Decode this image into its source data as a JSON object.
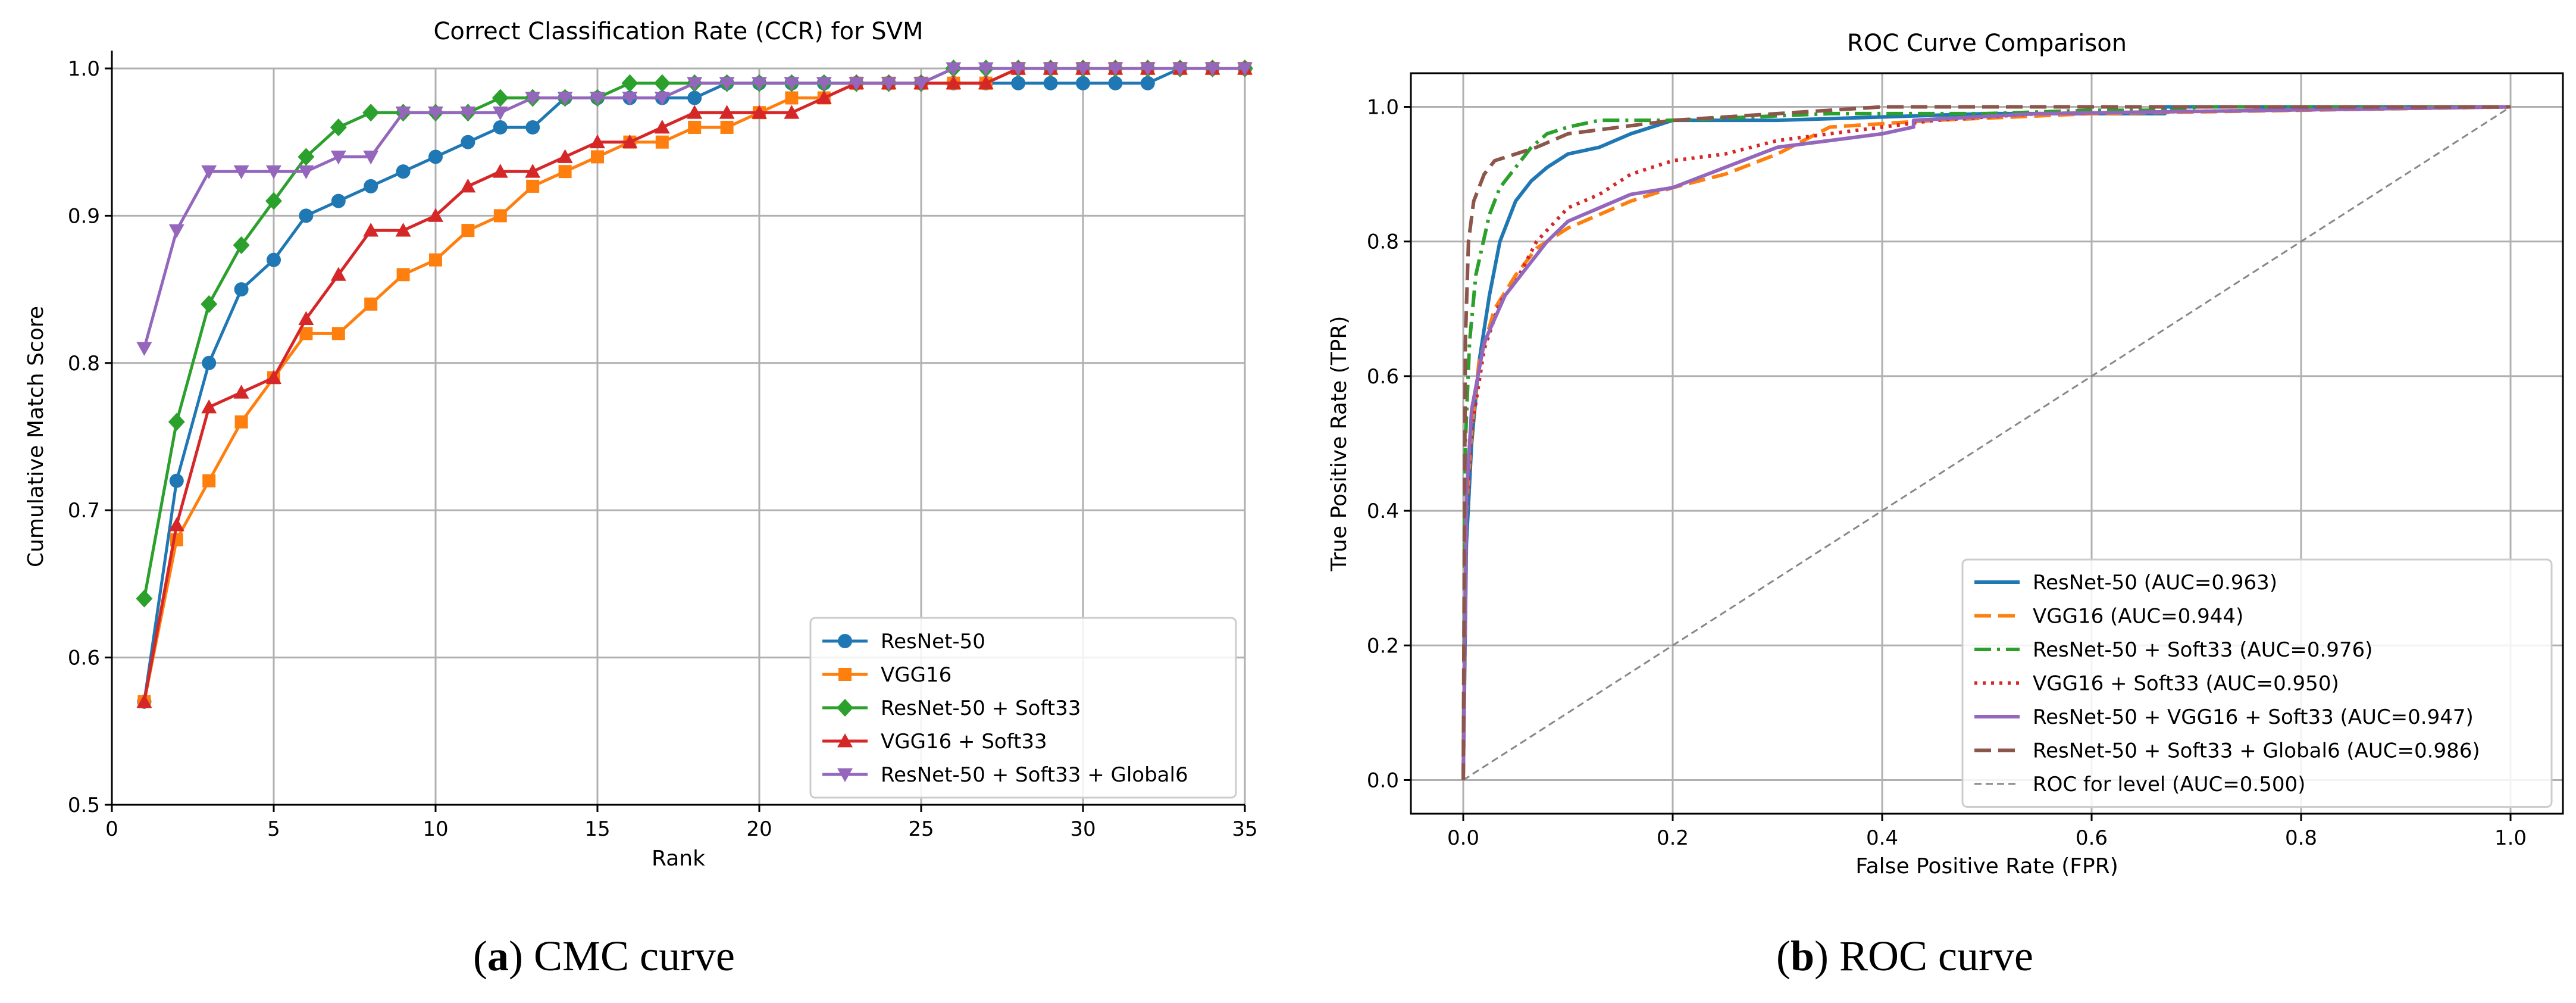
{
  "chart_data": [
    {
      "type": "line",
      "title": "Correct Classification Rate (CCR) for SVM",
      "xlabel": "Rank",
      "ylabel": "Cumulative Match Score",
      "xlim": [
        0,
        35
      ],
      "ylim": [
        0.5,
        1.0
      ],
      "xticks": [
        0,
        5,
        10,
        15,
        20,
        25,
        30,
        35
      ],
      "yticks": [
        0.5,
        0.6,
        0.7,
        0.8,
        0.9,
        1.0
      ],
      "grid": true,
      "legend_position": "bottom-right",
      "x": [
        1,
        2,
        3,
        4,
        5,
        6,
        7,
        8,
        9,
        10,
        11,
        12,
        13,
        14,
        15,
        16,
        17,
        18,
        19,
        20,
        21,
        22,
        23,
        24,
        25,
        26,
        27,
        28,
        29,
        30,
        31,
        32,
        33,
        34,
        35
      ],
      "series": [
        {
          "name": "ResNet-50",
          "color": "#1f77b4",
          "marker": "circle",
          "values": [
            0.57,
            0.72,
            0.8,
            0.85,
            0.87,
            0.9,
            0.91,
            0.92,
            0.93,
            0.94,
            0.95,
            0.96,
            0.96,
            0.98,
            0.98,
            0.98,
            0.98,
            0.98,
            0.99,
            0.99,
            0.99,
            0.99,
            0.99,
            0.99,
            0.99,
            0.99,
            0.99,
            0.99,
            0.99,
            0.99,
            0.99,
            0.99,
            1.0,
            1.0,
            1.0
          ]
        },
        {
          "name": "VGG16",
          "color": "#ff7f0e",
          "marker": "square",
          "values": [
            0.57,
            0.68,
            0.72,
            0.76,
            0.79,
            0.82,
            0.82,
            0.84,
            0.86,
            0.87,
            0.89,
            0.9,
            0.92,
            0.93,
            0.94,
            0.95,
            0.95,
            0.96,
            0.96,
            0.97,
            0.98,
            0.98,
            0.99,
            0.99,
            0.99,
            0.99,
            0.99,
            1.0,
            1.0,
            1.0,
            1.0,
            1.0,
            1.0,
            1.0,
            1.0
          ]
        },
        {
          "name": "ResNet-50 + Soft33",
          "color": "#2ca02c",
          "marker": "diamond",
          "values": [
            0.64,
            0.76,
            0.84,
            0.88,
            0.91,
            0.94,
            0.96,
            0.97,
            0.97,
            0.97,
            0.97,
            0.98,
            0.98,
            0.98,
            0.98,
            0.99,
            0.99,
            0.99,
            0.99,
            0.99,
            0.99,
            0.99,
            0.99,
            0.99,
            0.99,
            1.0,
            1.0,
            1.0,
            1.0,
            1.0,
            1.0,
            1.0,
            1.0,
            1.0,
            1.0
          ]
        },
        {
          "name": "VGG16 + Soft33",
          "color": "#d62728",
          "marker": "triangle-up",
          "values": [
            0.57,
            0.69,
            0.77,
            0.78,
            0.79,
            0.83,
            0.86,
            0.89,
            0.89,
            0.9,
            0.92,
            0.93,
            0.93,
            0.94,
            0.95,
            0.95,
            0.96,
            0.97,
            0.97,
            0.97,
            0.97,
            0.98,
            0.99,
            0.99,
            0.99,
            0.99,
            0.99,
            1.0,
            1.0,
            1.0,
            1.0,
            1.0,
            1.0,
            1.0,
            1.0
          ]
        },
        {
          "name": "ResNet-50 + Soft33 + Global6",
          "color": "#9467bd",
          "marker": "triangle-down",
          "values": [
            0.81,
            0.89,
            0.93,
            0.93,
            0.93,
            0.93,
            0.94,
            0.94,
            0.97,
            0.97,
            0.97,
            0.97,
            0.98,
            0.98,
            0.98,
            0.98,
            0.98,
            0.99,
            0.99,
            0.99,
            0.99,
            0.99,
            0.99,
            0.99,
            0.99,
            1.0,
            1.0,
            1.0,
            1.0,
            1.0,
            1.0,
            1.0,
            1.0,
            1.0,
            1.0
          ]
        }
      ]
    },
    {
      "type": "line",
      "title": "ROC Curve Comparison",
      "xlabel": "False Positive Rate (FPR)",
      "ylabel": "True Positive Rate (TPR)",
      "xlim": [
        -0.05,
        1.05
      ],
      "ylim": [
        -0.05,
        1.05
      ],
      "xticks": [
        0.0,
        0.2,
        0.4,
        0.6,
        0.8,
        1.0
      ],
      "yticks": [
        0.0,
        0.2,
        0.4,
        0.6,
        0.8,
        1.0
      ],
      "grid": true,
      "legend_position": "bottom-right",
      "series": [
        {
          "name": "ResNet-50 (AUC=0.963)",
          "color": "#1f77b4",
          "dash": "solid",
          "points": [
            [
              0,
              0
            ],
            [
              0.003,
              0.35
            ],
            [
              0.008,
              0.5
            ],
            [
              0.015,
              0.62
            ],
            [
              0.025,
              0.72
            ],
            [
              0.035,
              0.8
            ],
            [
              0.05,
              0.86
            ],
            [
              0.065,
              0.89
            ],
            [
              0.08,
              0.91
            ],
            [
              0.1,
              0.93
            ],
            [
              0.13,
              0.94
            ],
            [
              0.16,
              0.96
            ],
            [
              0.2,
              0.98
            ],
            [
              0.3,
              0.98
            ],
            [
              0.4,
              0.985
            ],
            [
              0.5,
              0.99
            ],
            [
              0.67,
              0.99
            ],
            [
              0.67,
              1.0
            ],
            [
              1.0,
              1.0
            ]
          ]
        },
        {
          "name": "VGG16 (AUC=0.944)",
          "color": "#ff7f0e",
          "dash": "dashed",
          "points": [
            [
              0,
              0
            ],
            [
              0.003,
              0.4
            ],
            [
              0.008,
              0.52
            ],
            [
              0.015,
              0.62
            ],
            [
              0.03,
              0.7
            ],
            [
              0.05,
              0.75
            ],
            [
              0.07,
              0.79
            ],
            [
              0.1,
              0.82
            ],
            [
              0.13,
              0.84
            ],
            [
              0.16,
              0.86
            ],
            [
              0.2,
              0.88
            ],
            [
              0.25,
              0.9
            ],
            [
              0.3,
              0.93
            ],
            [
              0.35,
              0.97
            ],
            [
              0.45,
              0.98
            ],
            [
              0.6,
              0.99
            ],
            [
              1.0,
              1.0
            ]
          ]
        },
        {
          "name": "ResNet-50 + Soft33 (AUC=0.976)",
          "color": "#2ca02c",
          "dash": "dashdot",
          "points": [
            [
              0,
              0
            ],
            [
              0.002,
              0.5
            ],
            [
              0.006,
              0.65
            ],
            [
              0.012,
              0.75
            ],
            [
              0.025,
              0.84
            ],
            [
              0.035,
              0.88
            ],
            [
              0.05,
              0.91
            ],
            [
              0.065,
              0.94
            ],
            [
              0.08,
              0.96
            ],
            [
              0.1,
              0.97
            ],
            [
              0.13,
              0.98
            ],
            [
              0.2,
              0.98
            ],
            [
              0.35,
              0.99
            ],
            [
              0.5,
              0.99
            ],
            [
              0.6,
              0.995
            ],
            [
              0.69,
              0.995
            ],
            [
              0.7,
              1.0
            ],
            [
              1.0,
              1.0
            ]
          ]
        },
        {
          "name": "VGG16 + Soft33 (AUC=0.950)",
          "color": "#d62728",
          "dash": "dotted",
          "points": [
            [
              0,
              0
            ],
            [
              0.003,
              0.4
            ],
            [
              0.008,
              0.52
            ],
            [
              0.02,
              0.64
            ],
            [
              0.035,
              0.71
            ],
            [
              0.05,
              0.74
            ],
            [
              0.07,
              0.8
            ],
            [
              0.1,
              0.85
            ],
            [
              0.13,
              0.87
            ],
            [
              0.16,
              0.9
            ],
            [
              0.2,
              0.92
            ],
            [
              0.25,
              0.93
            ],
            [
              0.3,
              0.95
            ],
            [
              0.35,
              0.96
            ],
            [
              0.4,
              0.97
            ],
            [
              0.45,
              0.98
            ],
            [
              0.55,
              0.99
            ],
            [
              1.0,
              1.0
            ]
          ]
        },
        {
          "name": "ResNet-50 + VGG16 + Soft33 (AUC=0.947)",
          "color": "#9467bd",
          "dash": "solid",
          "points": [
            [
              0,
              0
            ],
            [
              0.003,
              0.42
            ],
            [
              0.008,
              0.55
            ],
            [
              0.02,
              0.65
            ],
            [
              0.04,
              0.72
            ],
            [
              0.06,
              0.76
            ],
            [
              0.08,
              0.8
            ],
            [
              0.1,
              0.83
            ],
            [
              0.13,
              0.85
            ],
            [
              0.16,
              0.87
            ],
            [
              0.2,
              0.88
            ],
            [
              0.25,
              0.91
            ],
            [
              0.3,
              0.94
            ],
            [
              0.35,
              0.95
            ],
            [
              0.4,
              0.96
            ],
            [
              0.43,
              0.97
            ],
            [
              0.43,
              0.98
            ],
            [
              0.55,
              0.99
            ],
            [
              1.0,
              1.0
            ]
          ]
        },
        {
          "name": "ResNet-50 + Soft33 + Global6 (AUC=0.986)",
          "color": "#8c564b",
          "dash": "dashed",
          "points": [
            [
              0,
              0
            ],
            [
              0.002,
              0.65
            ],
            [
              0.005,
              0.8
            ],
            [
              0.01,
              0.86
            ],
            [
              0.02,
              0.9
            ],
            [
              0.03,
              0.92
            ],
            [
              0.05,
              0.93
            ],
            [
              0.07,
              0.94
            ],
            [
              0.1,
              0.96
            ],
            [
              0.15,
              0.97
            ],
            [
              0.2,
              0.98
            ],
            [
              0.3,
              0.99
            ],
            [
              0.4,
              1.0
            ],
            [
              1.0,
              1.0
            ]
          ]
        },
        {
          "name": "ROC for level (AUC=0.500)",
          "color": "#888888",
          "dash": "dashed-thin",
          "points": [
            [
              0,
              0
            ],
            [
              1,
              1
            ]
          ]
        }
      ]
    }
  ],
  "captions": [
    {
      "label": "a",
      "text": "CMC curve",
      "open": "(",
      "close": ")"
    },
    {
      "label": "b",
      "text": "ROC curve",
      "open": "(",
      "close": ")"
    }
  ]
}
